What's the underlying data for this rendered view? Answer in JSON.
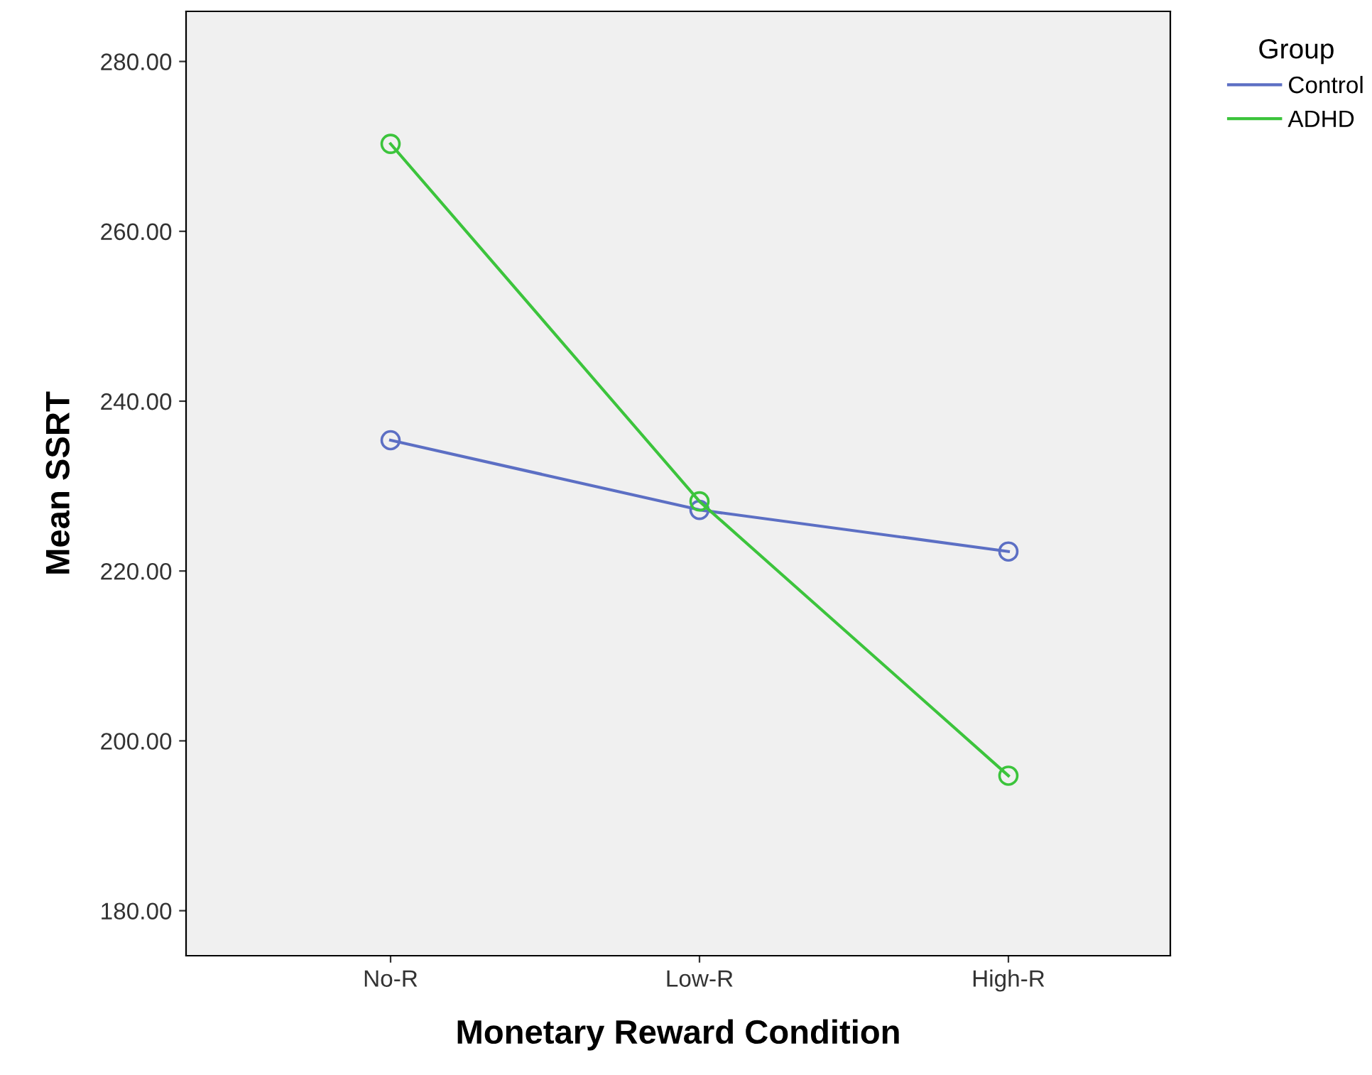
{
  "chart_data": {
    "type": "line",
    "xlabel": "Monetary Reward Condition",
    "ylabel": "Mean SSRT",
    "legend_title": "Group",
    "categories": [
      "No-R",
      "Low-R",
      "High-R"
    ],
    "series": [
      {
        "name": "Control",
        "color": "#5c6fc4",
        "values": [
          235.4,
          227.2,
          222.3
        ]
      },
      {
        "name": "ADHD",
        "color": "#3cc43c",
        "values": [
          270.3,
          228.2,
          195.9
        ]
      }
    ],
    "ylim": [
      174.7,
      285.9
    ],
    "yticks": [
      {
        "value": 180,
        "label": "180.00"
      },
      {
        "value": 200,
        "label": "200.00"
      },
      {
        "value": 220,
        "label": "220.00"
      },
      {
        "value": 240,
        "label": "240.00"
      },
      {
        "value": 260,
        "label": "260.00"
      },
      {
        "value": 280,
        "label": "280.00"
      }
    ],
    "marker": "circle",
    "line_style": "solid",
    "grid": false,
    "legend": "top right"
  }
}
